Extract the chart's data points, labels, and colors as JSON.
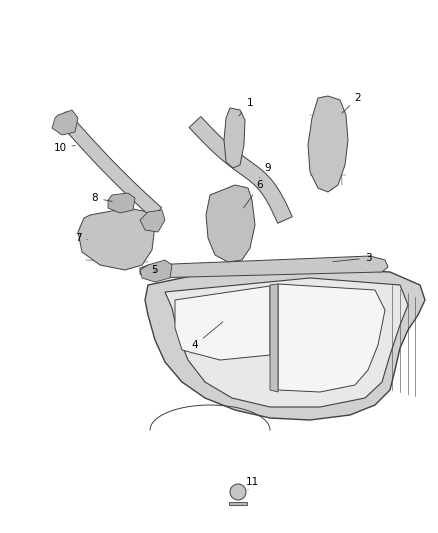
{
  "background_color": "#ffffff",
  "fig_width": 4.38,
  "fig_height": 5.33,
  "dpi": 100,
  "line_color": "#404040",
  "label_fontsize": 7.5,
  "label_color": "#000000",
  "edge_lw": 0.6,
  "part_face": "#d8d8d8",
  "part_face_dark": "#b0b0b0",
  "part_face_light": "#e8e8e8"
}
